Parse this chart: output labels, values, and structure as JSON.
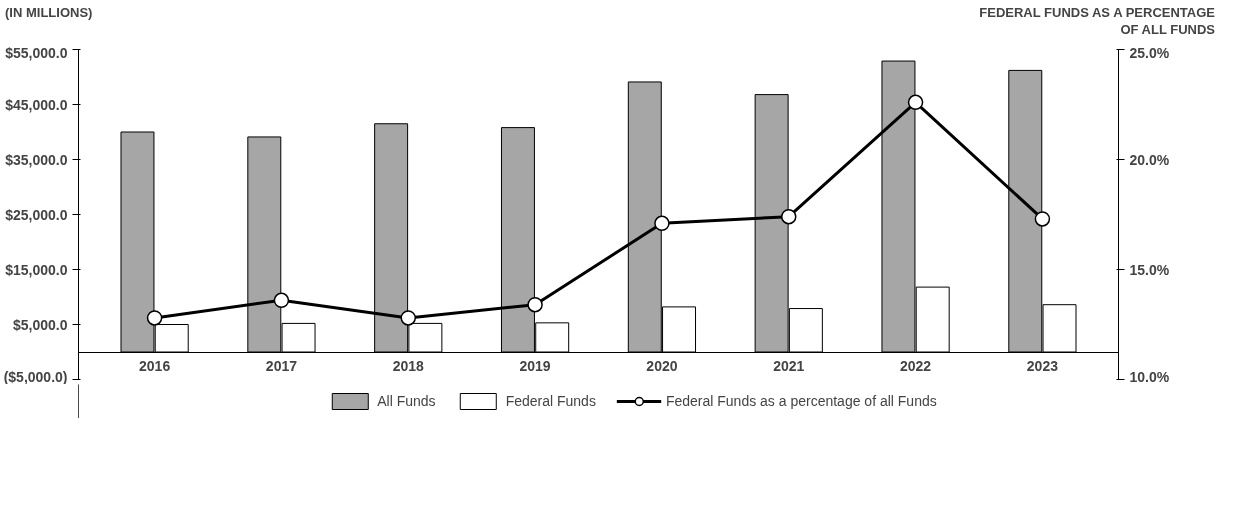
{
  "chart_data": {
    "type": "bar",
    "ylabel": "(IN MILLIONS)",
    "y2label": "FEDERAL FUNDS AS A PERCENTAGE\nOF ALL FUNDS",
    "categories": [
      "2016",
      "2017",
      "2018",
      "2019",
      "2020",
      "2021",
      "2022",
      "2023"
    ],
    "series": [
      {
        "name": "All Funds",
        "color": "#a6a6a6",
        "values": [
          40000,
          39100,
          41500,
          40800,
          49100,
          46800,
          52900,
          51200
        ]
      },
      {
        "name": "Federal Funds",
        "color": "#ffffff",
        "values": [
          5000,
          5200,
          5200,
          5300,
          8200,
          7900,
          11800,
          8600
        ]
      },
      {
        "name": "Federal Funds as a percentage of all Funds",
        "type": "line",
        "axis": "y2",
        "color": "#000000",
        "marker": "circle",
        "values": [
          12.8,
          13.6,
          12.8,
          13.4,
          17.1,
          17.4,
          22.6,
          17.3
        ]
      }
    ],
    "ylim": [
      -5000,
      55000
    ],
    "yticks": [
      {
        "value": -5000,
        "label": "($5,000.0)"
      },
      {
        "value": 5000,
        "label": "$5,000.0"
      },
      {
        "value": 15000,
        "label": "$15,000.0"
      },
      {
        "value": 25000,
        "label": "$25,000.0"
      },
      {
        "value": 35000,
        "label": "$35,000.0"
      },
      {
        "value": 45000,
        "label": "$45,000.0"
      },
      {
        "value": 55000,
        "label": "$55,000.0"
      }
    ],
    "y2lim": [
      10,
      25
    ],
    "y2ticks": [
      {
        "value": 10,
        "label": "10.0%"
      },
      {
        "value": 15,
        "label": "15.0%"
      },
      {
        "value": 20,
        "label": "20.0%"
      },
      {
        "value": 25,
        "label": "25.0%"
      }
    ],
    "grid": false,
    "legend": "bottom"
  }
}
